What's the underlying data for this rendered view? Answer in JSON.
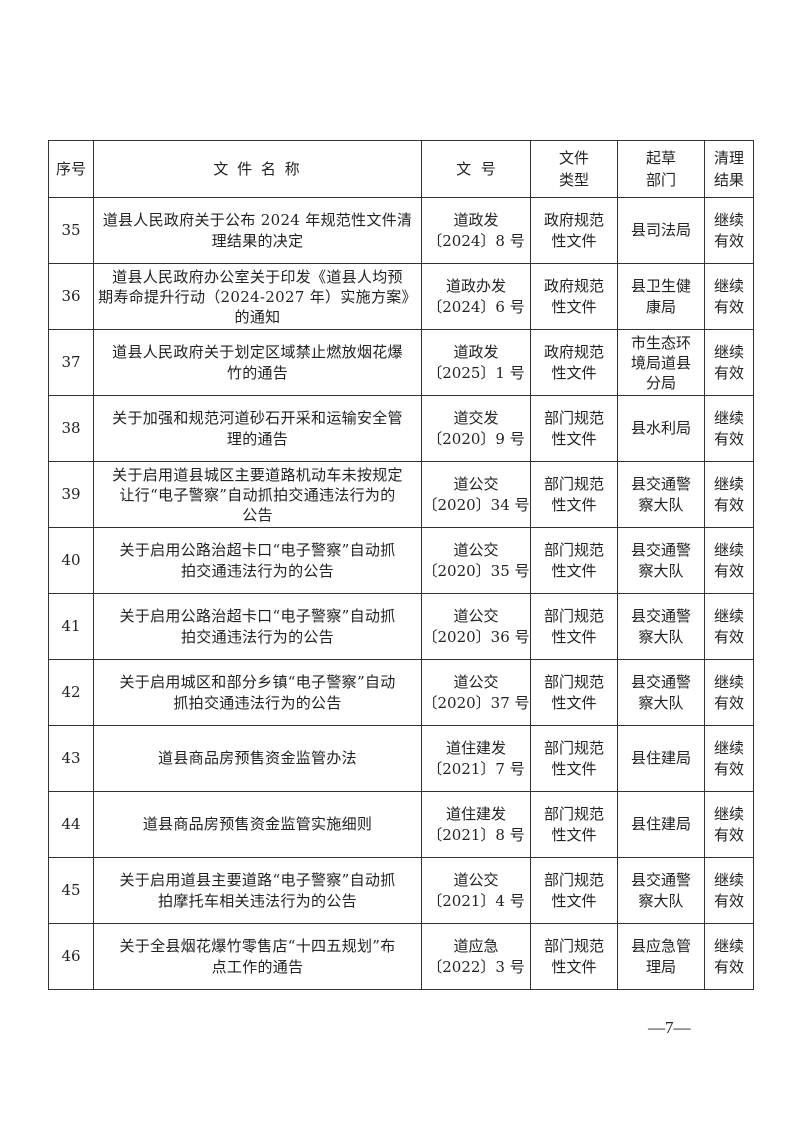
{
  "header": {
    "index": "序号",
    "name": "文 件 名 称",
    "doc_no": "文  号",
    "type": [
      "文件",
      "类型"
    ],
    "dept": [
      "起草",
      "部门"
    ],
    "result": [
      "清理",
      "结果"
    ]
  },
  "rows": [
    {
      "index": "35",
      "name": [
        "道县人民政府关于公布 2024 年规范性文件清",
        "理结果的决定"
      ],
      "doc_no": [
        "道政发",
        "〔2024〕8 号"
      ],
      "type": [
        "政府规范",
        "性文件"
      ],
      "dept": [
        "县司法局"
      ],
      "result": [
        "继续",
        "有效"
      ]
    },
    {
      "index": "36",
      "name": [
        "道县人民政府办公室关于印发《道县人均预",
        "期寿命提升行动（2024-2027 年）实施方案》",
        "的通知"
      ],
      "doc_no": [
        "道政办发",
        "〔2024〕6 号"
      ],
      "type": [
        "政府规范",
        "性文件"
      ],
      "dept": [
        "县卫生健",
        "康局"
      ],
      "result": [
        "继续",
        "有效"
      ]
    },
    {
      "index": "37",
      "name": [
        "道县人民政府关于划定区域禁止燃放烟花爆",
        "竹的通告"
      ],
      "doc_no": [
        "道政发",
        "〔2025〕1 号"
      ],
      "type": [
        "政府规范",
        "性文件"
      ],
      "dept": [
        "市生态环",
        "境局道县",
        "分局"
      ],
      "result": [
        "继续",
        "有效"
      ]
    },
    {
      "index": "38",
      "name": [
        "关于加强和规范河道砂石开采和运输安全管",
        "理的通告"
      ],
      "doc_no": [
        "道交发",
        "〔2020〕9 号"
      ],
      "type": [
        "部门规范",
        "性文件"
      ],
      "dept": [
        "县水利局"
      ],
      "result": [
        "继续",
        "有效"
      ]
    },
    {
      "index": "39",
      "name": [
        "关于启用道县城区主要道路机动车未按规定",
        "让行“电子警察”自动抓拍交通违法行为的",
        "公告"
      ],
      "doc_no": [
        "道公交",
        "〔2020〕34 号"
      ],
      "type": [
        "部门规范",
        "性文件"
      ],
      "dept": [
        "县交通警",
        "察大队"
      ],
      "result": [
        "继续",
        "有效"
      ]
    },
    {
      "index": "40",
      "name": [
        "关于启用公路治超卡口“电子警察”自动抓",
        "拍交通违法行为的公告"
      ],
      "doc_no": [
        "道公交",
        "〔2020〕35 号"
      ],
      "type": [
        "部门规范",
        "性文件"
      ],
      "dept": [
        "县交通警",
        "察大队"
      ],
      "result": [
        "继续",
        "有效"
      ]
    },
    {
      "index": "41",
      "name": [
        "关于启用公路治超卡口“电子警察”自动抓",
        "拍交通违法行为的公告"
      ],
      "doc_no": [
        "道公交",
        "〔2020〕36 号"
      ],
      "type": [
        "部门规范",
        "性文件"
      ],
      "dept": [
        "县交通警",
        "察大队"
      ],
      "result": [
        "继续",
        "有效"
      ]
    },
    {
      "index": "42",
      "name": [
        "关于启用城区和部分乡镇“电子警察”自动",
        "抓拍交通违法行为的公告"
      ],
      "doc_no": [
        "道公交",
        "〔2020〕37 号"
      ],
      "type": [
        "部门规范",
        "性文件"
      ],
      "dept": [
        "县交通警",
        "察大队"
      ],
      "result": [
        "继续",
        "有效"
      ]
    },
    {
      "index": "43",
      "name": [
        "道县商品房预售资金监管办法"
      ],
      "doc_no": [
        "道住建发",
        "〔2021〕7 号"
      ],
      "type": [
        "部门规范",
        "性文件"
      ],
      "dept": [
        "县住建局"
      ],
      "result": [
        "继续",
        "有效"
      ]
    },
    {
      "index": "44",
      "name": [
        "道县商品房预售资金监管实施细则"
      ],
      "doc_no": [
        "道住建发",
        "〔2021〕8 号"
      ],
      "type": [
        "部门规范",
        "性文件"
      ],
      "dept": [
        "县住建局"
      ],
      "result": [
        "继续",
        "有效"
      ]
    },
    {
      "index": "45",
      "name": [
        "关于启用道县主要道路“电子警察”自动抓",
        "拍摩托车相关违法行为的公告"
      ],
      "doc_no": [
        "道公交",
        "〔2021〕4 号"
      ],
      "type": [
        "部门规范",
        "性文件"
      ],
      "dept": [
        "县交通警",
        "察大队"
      ],
      "result": [
        "继续",
        "有效"
      ]
    },
    {
      "index": "46",
      "name": [
        "关于全县烟花爆竹零售店“十四五规划”布",
        "点工作的通告"
      ],
      "doc_no": [
        "道应急",
        "〔2022〕3 号"
      ],
      "type": [
        "部门规范",
        "性文件"
      ],
      "dept": [
        "县应急管",
        "理局"
      ],
      "result": [
        "继续",
        "有效"
      ]
    }
  ],
  "page_number": "—7—"
}
